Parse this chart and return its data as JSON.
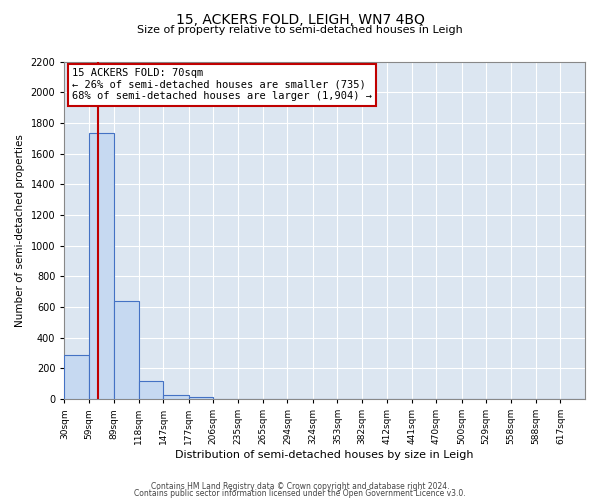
{
  "title1": "15, ACKERS FOLD, LEIGH, WN7 4BQ",
  "title2": "Size of property relative to semi-detached houses in Leigh",
  "xlabel": "Distribution of semi-detached houses by size in Leigh",
  "ylabel": "Number of semi-detached properties",
  "bin_edges": [
    30,
    59,
    89,
    118,
    147,
    177,
    206,
    235,
    265,
    294,
    324,
    353,
    382,
    412,
    441,
    470,
    500,
    529,
    558,
    588,
    617,
    646
  ],
  "bin_labels": [
    "30sqm",
    "59sqm",
    "89sqm",
    "118sqm",
    "147sqm",
    "177sqm",
    "206sqm",
    "235sqm",
    "265sqm",
    "294sqm",
    "324sqm",
    "353sqm",
    "382sqm",
    "412sqm",
    "441sqm",
    "470sqm",
    "500sqm",
    "529sqm",
    "558sqm",
    "588sqm",
    "617sqm"
  ],
  "bar_heights": [
    290,
    1735,
    640,
    115,
    25,
    15,
    0,
    0,
    0,
    0,
    0,
    0,
    0,
    0,
    0,
    0,
    0,
    0,
    0,
    0,
    0
  ],
  "bar_color": "#c6d9f1",
  "bar_edge_color": "#4472c4",
  "property_size": 70,
  "red_line_color": "#c00000",
  "ylim": [
    0,
    2200
  ],
  "yticks": [
    0,
    200,
    400,
    600,
    800,
    1000,
    1200,
    1400,
    1600,
    1800,
    2000,
    2200
  ],
  "annotation_line1": "15 ACKERS FOLD: 70sqm",
  "annotation_line2": "← 26% of semi-detached houses are smaller (735)",
  "annotation_line3": "68% of semi-detached houses are larger (1,904) →",
  "annotation_box_color": "#ffffff",
  "annotation_box_edge_color": "#c00000",
  "plot_bg_color": "#dce6f1",
  "fig_bg_color": "#ffffff",
  "footer1": "Contains HM Land Registry data © Crown copyright and database right 2024.",
  "footer2": "Contains public sector information licensed under the Open Government Licence v3.0."
}
